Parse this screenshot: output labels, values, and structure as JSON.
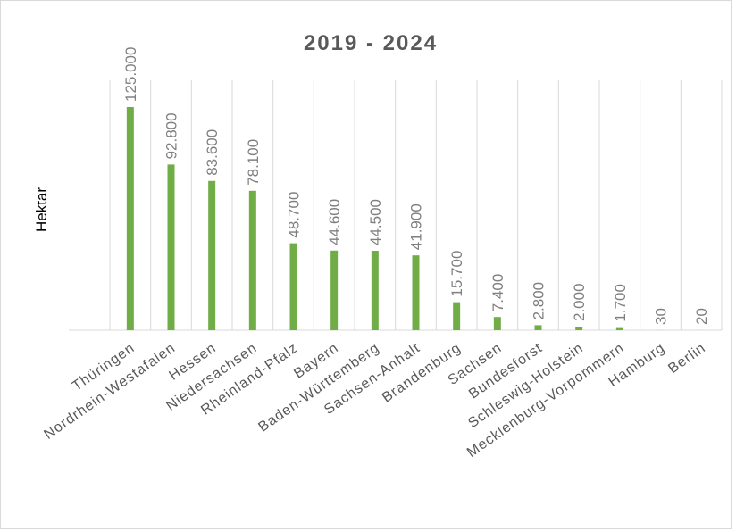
{
  "chart_data": {
    "type": "bar",
    "title": "2019 - 2024",
    "y_label": "Hektar",
    "categories": [
      "Thüringen",
      "Nordrhein-Westafalen",
      "Hessen",
      "Niedersachsen",
      "Rheinland-Pfalz",
      "Bayern",
      "Baden-Württemberg",
      "Sachsen-Anhalt",
      "Brandenburg",
      "Sachsen",
      "Bundesforst",
      "Schleswig-Holstein",
      "Mecklenburg-Vorpommern",
      "Hamburg",
      "Berlin"
    ],
    "values": [
      125000,
      92800,
      83600,
      78100,
      48700,
      44600,
      44500,
      41900,
      15700,
      7400,
      2800,
      2000,
      1700,
      30,
      20
    ],
    "value_labels": [
      "125.000",
      "92.800",
      "83.600",
      "78.100",
      "48.700",
      "44.600",
      "44.500",
      "41.900",
      "15.700",
      "7.400",
      "2.800",
      "2.000",
      "1.700",
      "30",
      "20"
    ],
    "color": "#70ad47",
    "ylim": [
      0,
      140000
    ],
    "grid": true
  }
}
